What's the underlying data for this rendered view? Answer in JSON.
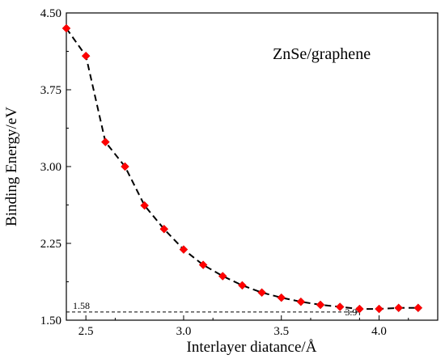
{
  "chart_data": {
    "type": "line",
    "title": "",
    "legend_label": "ZnSe/graphene",
    "xlabel": "Interlayer diatance/Å",
    "ylabel": "Binding Energy/eV",
    "xlim": [
      2.4,
      4.3
    ],
    "ylim": [
      1.5,
      4.5
    ],
    "x_ticks": [
      {
        "value": 2.5,
        "label": "2.5"
      },
      {
        "value": 3.0,
        "label": "3.0"
      },
      {
        "value": 3.5,
        "label": "3.5"
      },
      {
        "value": 4.0,
        "label": "4.0"
      }
    ],
    "y_ticks": [
      {
        "value": 1.5,
        "label": "1.50"
      },
      {
        "value": 2.25,
        "label": "2.25"
      },
      {
        "value": 3.0,
        "label": "3.00"
      },
      {
        "value": 3.75,
        "label": "3.75"
      },
      {
        "value": 4.5,
        "label": "4.50"
      }
    ],
    "grid": false,
    "series": [
      {
        "x": [
          2.4,
          2.5,
          2.6,
          2.7,
          2.8,
          2.9,
          3.0,
          3.1,
          3.2,
          3.3,
          3.4,
          3.5,
          3.6,
          3.7,
          3.8,
          3.9,
          4.0,
          4.1,
          4.2
        ],
        "y": [
          4.35,
          4.08,
          3.24,
          3.0,
          2.62,
          2.39,
          2.19,
          2.04,
          1.93,
          1.84,
          1.77,
          1.72,
          1.68,
          1.65,
          1.63,
          1.61,
          1.61,
          1.62,
          1.62
        ],
        "marker": "diamond",
        "marker_color": "#ff0000",
        "line_style": "dashed",
        "line_color": "#000000"
      }
    ],
    "annotations": [
      {
        "type": "hline",
        "value": 1.58,
        "label": "1.58"
      },
      {
        "type": "vline",
        "value": 3.9,
        "label": "3.9"
      }
    ]
  }
}
